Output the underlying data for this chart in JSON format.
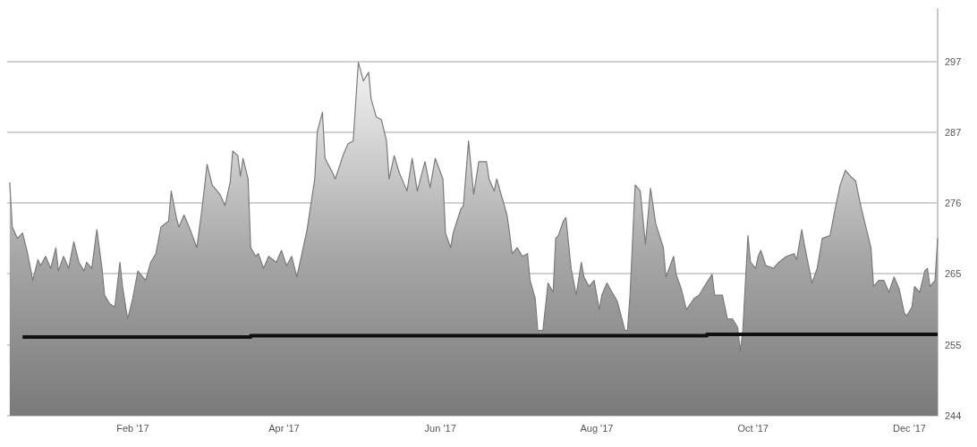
{
  "chart_data": {
    "type": "area",
    "xlim": [
      "2016-12-14",
      "2017-12-12"
    ],
    "xticks": [
      {
        "value": "2017-02-01",
        "label": "Feb '17"
      },
      {
        "value": "2017-04-01",
        "label": "Apr '17"
      },
      {
        "value": "2017-06-01",
        "label": "Jun '17"
      },
      {
        "value": "2017-08-01",
        "label": "Aug '17"
      },
      {
        "value": "2017-10-01",
        "label": "Oct '17"
      },
      {
        "value": "2017-12-01",
        "label": "Dec '17"
      }
    ],
    "ylim": [
      244,
      305
    ],
    "yticks": [
      {
        "value": 244,
        "label": "244"
      },
      {
        "value": 254.6,
        "label": "255"
      },
      {
        "value": 265.3,
        "label": "265"
      },
      {
        "value": 275.9,
        "label": "276"
      },
      {
        "value": 286.5,
        "label": "287"
      },
      {
        "value": 297.1,
        "label": "297"
      }
    ],
    "grid": "y",
    "series": [
      {
        "color": "#7a7a7a",
        "x": [
          "2016-12-15",
          "2016-12-16",
          "2016-12-18",
          "2016-12-20",
          "2016-12-22",
          "2016-12-24",
          "2016-12-26",
          "2016-12-27",
          "2016-12-29",
          "2016-12-31",
          "2017-01-02",
          "2017-01-03",
          "2017-01-05",
          "2017-01-07",
          "2017-01-09",
          "2017-01-11",
          "2017-01-13",
          "2017-01-14",
          "2017-01-16",
          "2017-01-18",
          "2017-01-20",
          "2017-01-21",
          "2017-01-23",
          "2017-01-25",
          "2017-01-27",
          "2017-01-28",
          "2017-01-30",
          "2017-02-01",
          "2017-02-03",
          "2017-02-06",
          "2017-02-08",
          "2017-02-10",
          "2017-02-12",
          "2017-02-15",
          "2017-02-16",
          "2017-02-18",
          "2017-02-19",
          "2017-02-21",
          "2017-02-23",
          "2017-02-26",
          "2017-02-28",
          "2017-03-02",
          "2017-03-04",
          "2017-03-07",
          "2017-03-09",
          "2017-03-11",
          "2017-03-12",
          "2017-03-14",
          "2017-03-15",
          "2017-03-16",
          "2017-03-18",
          "2017-03-19",
          "2017-03-21",
          "2017-03-22",
          "2017-03-24",
          "2017-03-26",
          "2017-03-29",
          "2017-03-31",
          "2017-04-02",
          "2017-04-04",
          "2017-04-06",
          "2017-04-08",
          "2017-04-10",
          "2017-04-13",
          "2017-04-14",
          "2017-04-16",
          "2017-04-17",
          "2017-04-20",
          "2017-04-21",
          "2017-04-24",
          "2017-04-26",
          "2017-04-28",
          "2017-04-30",
          "2017-05-02",
          "2017-05-04",
          "2017-05-05",
          "2017-05-07",
          "2017-05-09",
          "2017-05-11",
          "2017-05-12",
          "2017-05-14",
          "2017-05-16",
          "2017-05-19",
          "2017-05-21",
          "2017-05-23",
          "2017-05-26",
          "2017-05-28",
          "2017-05-30",
          "2017-06-02",
          "2017-06-03",
          "2017-06-05",
          "2017-06-06",
          "2017-06-09",
          "2017-06-10",
          "2017-06-12",
          "2017-06-14",
          "2017-06-16",
          "2017-06-19",
          "2017-06-20",
          "2017-06-22",
          "2017-06-23",
          "2017-06-25",
          "2017-06-27",
          "2017-06-28",
          "2017-06-29",
          "2017-07-01",
          "2017-07-03",
          "2017-07-05",
          "2017-07-06",
          "2017-07-08",
          "2017-07-09",
          "2017-07-11",
          "2017-07-13",
          "2017-07-15",
          "2017-07-16",
          "2017-07-17",
          "2017-07-19",
          "2017-07-20",
          "2017-07-22",
          "2017-07-24",
          "2017-07-26",
          "2017-07-27",
          "2017-07-29",
          "2017-07-31",
          "2017-08-02",
          "2017-08-03",
          "2017-08-05",
          "2017-08-07",
          "2017-08-09",
          "2017-08-12",
          "2017-08-13",
          "2017-08-14",
          "2017-08-16",
          "2017-08-18",
          "2017-08-20",
          "2017-08-22",
          "2017-08-24",
          "2017-08-27",
          "2017-08-28",
          "2017-08-31",
          "2017-09-01",
          "2017-09-03",
          "2017-09-05",
          "2017-09-08",
          "2017-09-10",
          "2017-09-12",
          "2017-09-15",
          "2017-09-16",
          "2017-09-19",
          "2017-09-21",
          "2017-09-23",
          "2017-09-25",
          "2017-09-26",
          "2017-09-27",
          "2017-09-29",
          "2017-09-30",
          "2017-10-02",
          "2017-10-03",
          "2017-10-04",
          "2017-10-06",
          "2017-10-09",
          "2017-10-11",
          "2017-10-14",
          "2017-10-17",
          "2017-10-18",
          "2017-10-20",
          "2017-10-21",
          "2017-10-24",
          "2017-10-26",
          "2017-10-28",
          "2017-10-31",
          "2017-11-02",
          "2017-11-04",
          "2017-11-06",
          "2017-11-08",
          "2017-11-10",
          "2017-11-12",
          "2017-11-14",
          "2017-11-16",
          "2017-11-17",
          "2017-11-19",
          "2017-11-21",
          "2017-11-23",
          "2017-11-25",
          "2017-11-27",
          "2017-11-29",
          "2017-11-30",
          "2017-12-02",
          "2017-12-03",
          "2017-12-05",
          "2017-12-07",
          "2017-12-08",
          "2017-12-09",
          "2017-12-11",
          "2017-12-12"
        ],
        "values": [
          279.0,
          272.3,
          270.6,
          271.4,
          268.3,
          264.3,
          267.4,
          266.5,
          267.9,
          266.1,
          269.2,
          265.7,
          267.9,
          266.1,
          270.1,
          267.0,
          265.7,
          267.0,
          266.1,
          271.9,
          266.1,
          262.1,
          260.8,
          260.3,
          267.0,
          263.4,
          258.5,
          261.6,
          265.7,
          264.3,
          267.0,
          268.3,
          272.3,
          273.2,
          277.7,
          273.7,
          272.3,
          274.1,
          272.3,
          269.2,
          275.0,
          281.7,
          278.6,
          277.2,
          275.5,
          279.0,
          283.7,
          283.0,
          279.9,
          282.6,
          279.5,
          269.2,
          267.9,
          268.3,
          266.1,
          267.9,
          267.0,
          268.8,
          266.5,
          267.9,
          264.8,
          268.3,
          271.9,
          279.5,
          286.6,
          289.5,
          282.6,
          280.4,
          279.5,
          283.0,
          284.8,
          285.2,
          297.0,
          294.2,
          295.5,
          291.5,
          288.8,
          288.4,
          285.2,
          279.5,
          283.0,
          280.4,
          277.7,
          282.6,
          277.7,
          282.1,
          278.2,
          282.6,
          279.5,
          271.4,
          269.2,
          271.4,
          275.0,
          275.5,
          285.2,
          277.2,
          282.1,
          282.1,
          279.5,
          277.7,
          279.5,
          276.8,
          274.1,
          271.4,
          268.3,
          269.2,
          267.9,
          268.3,
          264.3,
          261.6,
          256.8,
          256.8,
          263.9,
          262.5,
          270.6,
          271.0,
          273.2,
          273.7,
          266.1,
          262.1,
          267.0,
          264.8,
          263.4,
          264.3,
          259.9,
          262.1,
          263.9,
          262.5,
          261.2,
          256.8,
          256.8,
          262.1,
          278.6,
          277.7,
          269.7,
          278.1,
          272.8,
          269.2,
          264.8,
          267.9,
          265.2,
          263.0,
          259.9,
          261.6,
          262.1,
          263.4,
          265.2,
          262.1,
          262.1,
          258.5,
          258.5,
          257.2,
          253.6,
          256.8,
          271.0,
          267.0,
          266.1,
          267.9,
          268.8,
          266.5,
          266.1,
          267.0,
          267.9,
          268.3,
          267.4,
          271.9,
          269.7,
          263.9,
          266.1,
          270.6,
          271.0,
          275.0,
          278.6,
          280.8,
          279.9,
          279.2,
          275.5,
          272.3,
          269.2,
          263.4,
          264.3,
          264.3,
          262.5,
          264.8,
          263.0,
          259.4,
          259.0,
          260.3,
          263.4,
          262.5,
          265.7,
          266.1,
          263.4,
          264.3,
          270.6
        ]
      },
      {
        "type": "step",
        "color": "#111111",
        "x": [
          "2016-12-20",
          "2017-03-19",
          "2017-09-13",
          "2017-12-12"
        ],
        "values": [
          255.8,
          256.0,
          256.2,
          256.2
        ]
      }
    ]
  }
}
